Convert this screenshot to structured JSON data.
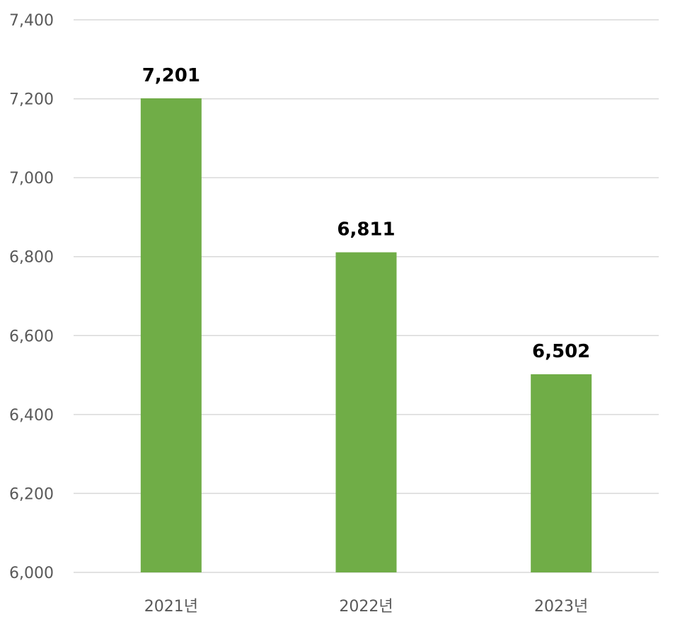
{
  "chart_data": {
    "type": "bar",
    "categories": [
      "2021년",
      "2022년",
      "2023년"
    ],
    "series": [
      {
        "values": [
          7201,
          6811,
          6502
        ],
        "color": "#70ad47"
      }
    ],
    "data_labels": [
      "7,201",
      "6,811",
      "6,502"
    ],
    "ylim": [
      6000,
      7400
    ],
    "yticks": [
      6000,
      6200,
      6400,
      6600,
      6800,
      7000,
      7200,
      7400
    ],
    "ytick_labels": [
      "6,000",
      "6,200",
      "6,400",
      "6,600",
      "6,800",
      "7,000",
      "7,200",
      "7,400"
    ],
    "grid": true,
    "legend": "none",
    "title": "",
    "xlabel": "",
    "ylabel": ""
  }
}
